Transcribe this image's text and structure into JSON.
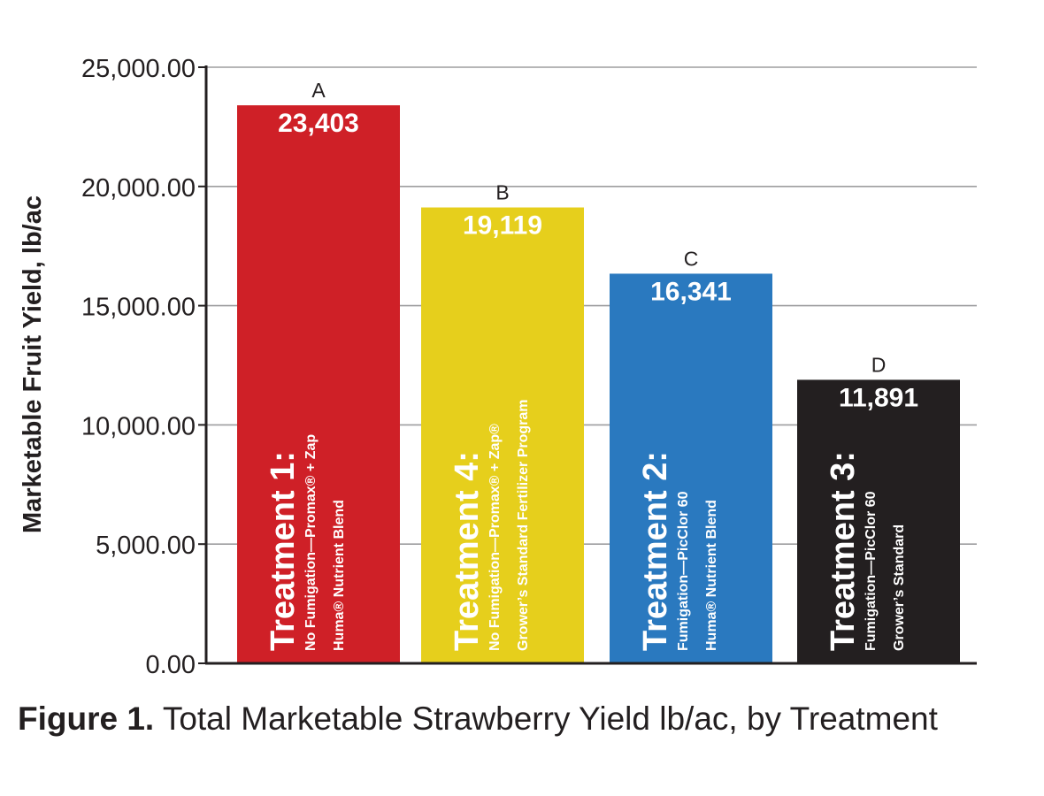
{
  "caption": {
    "label": "Figure 1.",
    "text": "Total Marketable Strawberry Yield lb/ac, by Treatment"
  },
  "chart_data": {
    "type": "bar",
    "ylabel": "Marketable Fruit Yield, lb/ac",
    "xlabel": "",
    "ylim": [
      0,
      25000
    ],
    "yticks": [
      0,
      5000,
      10000,
      15000,
      20000,
      25000
    ],
    "ytick_labels": [
      "0.00",
      "5,000.00",
      "10,000.00",
      "15,000.00",
      "20,000.00",
      "25,000.00"
    ],
    "grid": "horizontal",
    "bars": [
      {
        "value": 23403,
        "value_label": "23,403",
        "letter": "A",
        "color": "#cf2027",
        "title": "Treatment 1:",
        "lines": [
          "No Fumigation—Promax® + Zap",
          "Huma® Nutrient Blend"
        ]
      },
      {
        "value": 19119,
        "value_label": "19,119",
        "letter": "B",
        "color": "#e6cf1c",
        "title": "Treatment 4:",
        "lines": [
          "No Fumigation—Promax® + Zap®",
          "Grower’s Standard Fertilizer Program"
        ]
      },
      {
        "value": 16341,
        "value_label": "16,341",
        "letter": "C",
        "color": "#2a79bf",
        "title": "Treatment 2:",
        "lines": [
          "Fumigation—PicClor 60",
          "Huma® Nutrient Blend"
        ]
      },
      {
        "value": 11891,
        "value_label": "11,891",
        "letter": "D",
        "color": "#231f20",
        "title": "Treatment 3:",
        "lines": [
          "Fumigation—PicClor 60",
          "Grower’s Standard"
        ]
      }
    ]
  }
}
